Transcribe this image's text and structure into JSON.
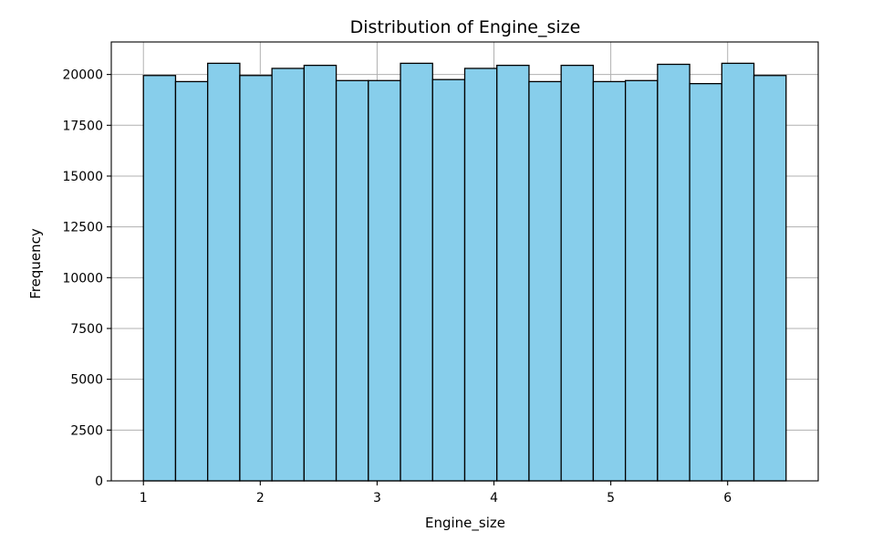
{
  "chart_data": {
    "type": "bar",
    "subtype": "histogram",
    "title": "Distribution of Engine_size",
    "xlabel": "Engine_size",
    "ylabel": "Frequency",
    "xlim": [
      0.725,
      6.775
    ],
    "ylim": [
      0,
      21600
    ],
    "xticks": [
      1,
      2,
      3,
      4,
      5,
      6
    ],
    "yticks": [
      0,
      2500,
      5000,
      7500,
      10000,
      12500,
      15000,
      17500,
      20000
    ],
    "grid": true,
    "bar_color": "#87ceeb",
    "edge_color": "#000000",
    "bins": {
      "edges": [
        1.0,
        1.275,
        1.55,
        1.825,
        2.1,
        2.375,
        2.65,
        2.925,
        3.2,
        3.475,
        3.75,
        4.025,
        4.3,
        4.575,
        4.85,
        5.125,
        5.4,
        5.675,
        5.95,
        6.225,
        6.5
      ],
      "counts": [
        19950,
        19650,
        20550,
        19950,
        20300,
        20450,
        19700,
        19700,
        20550,
        19750,
        20300,
        20450,
        19650,
        20450,
        19650,
        19700,
        20500,
        19550,
        20550,
        19950
      ]
    }
  }
}
